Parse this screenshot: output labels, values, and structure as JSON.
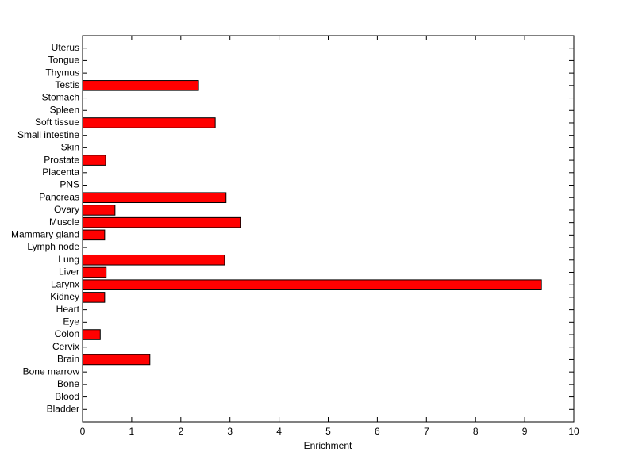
{
  "chart_data": {
    "type": "bar",
    "orientation": "horizontal",
    "xlabel": "Enrichment",
    "categories": [
      "Bladder",
      "Blood",
      "Bone",
      "Bone marrow",
      "Brain",
      "Cervix",
      "Colon",
      "Eye",
      "Heart",
      "Kidney",
      "Larynx",
      "Liver",
      "Lung",
      "Lymph node",
      "Mammary gland",
      "Muscle",
      "Ovary",
      "Pancreas",
      "PNS",
      "Placenta",
      "Prostate",
      "Skin",
      "Small intestine",
      "Soft tissue",
      "Spleen",
      "Stomach",
      "Testis",
      "Thymus",
      "Tongue",
      "Uterus"
    ],
    "values": [
      0,
      0,
      0,
      0,
      1.37,
      0,
      0.36,
      0,
      0,
      0.45,
      9.34,
      0.48,
      2.89,
      0,
      0.45,
      3.21,
      0.66,
      2.92,
      0,
      0,
      0.47,
      0,
      0,
      2.7,
      0,
      0,
      2.36,
      0,
      0,
      0
    ],
    "color": "#ff0000",
    "xlim": [
      0,
      10
    ],
    "xticks": [
      0,
      1,
      2,
      3,
      4,
      5,
      6,
      7,
      8,
      9,
      10
    ],
    "grid": false
  }
}
